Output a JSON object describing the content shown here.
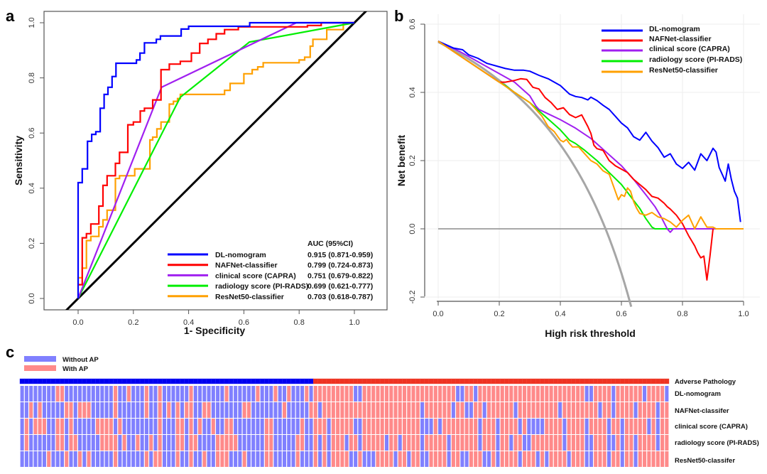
{
  "panels": {
    "a": "a",
    "b": "b",
    "c": "c"
  },
  "colors": {
    "dl": "#0000ff",
    "naf": "#ff0000",
    "capra": "#a020f0",
    "pirads": "#00ee00",
    "resnet": "#ffa000",
    "diag": "#000000",
    "treat_all": "#a6a6a6",
    "treat_none": "#8c8c8c",
    "hm_without": "#8080ff",
    "hm_with": "#ff8a8a",
    "hm_bar_without": "#0000ee",
    "hm_bar_with": "#ee3322"
  },
  "chart_data": [
    {
      "id": "roc",
      "type": "line",
      "title": "",
      "xlabel": "1- Specificity",
      "ylabel": "Sensitivity",
      "xlim": [
        -0.13,
        1.1
      ],
      "ylim": [
        -0.04,
        1.04
      ],
      "xticks": [
        "0.0",
        "0.2",
        "0.4",
        "0.6",
        "0.8",
        "1.0"
      ],
      "yticks": [
        "0.0",
        "0.2",
        "0.4",
        "0.6",
        "0.8",
        "1.0"
      ],
      "legend_position": "bottom-right",
      "legend_header": "AUC (95%CI)",
      "reference_line": {
        "name": "chance",
        "x": [
          -0.05,
          1.08
        ],
        "y": [
          -0.05,
          1.08
        ]
      },
      "series": [
        {
          "key": "dl",
          "name": "DL-nomogram",
          "auc": "0.915 (0.871-0.959)",
          "x": [
            0,
            0,
            0.015,
            0.015,
            0.034,
            0.034,
            0.049,
            0.049,
            0.064,
            0.064,
            0.08,
            0.08,
            0.094,
            0.094,
            0.108,
            0.108,
            0.123,
            0.123,
            0.137,
            0.137,
            0.211,
            0.211,
            0.224,
            0.224,
            0.24,
            0.24,
            0.283,
            0.283,
            0.298,
            0.298,
            0.373,
            0.373,
            0.4,
            0.4,
            0.621,
            0.621,
            1.0
          ],
          "y": [
            0,
            0.42,
            0.42,
            0.47,
            0.47,
            0.57,
            0.57,
            0.595,
            0.595,
            0.605,
            0.605,
            0.69,
            0.69,
            0.74,
            0.74,
            0.766,
            0.766,
            0.805,
            0.805,
            0.853,
            0.853,
            0.865,
            0.865,
            0.89,
            0.89,
            0.927,
            0.927,
            0.94,
            0.94,
            0.952,
            0.952,
            0.977,
            0.977,
            0.987,
            0.987,
            1.0,
            1.0
          ]
        },
        {
          "key": "naf",
          "name": "NAFNet-classifier",
          "auc": "0.799 (0.724-0.873)",
          "x": [
            0,
            0.015,
            0.015,
            0.03,
            0.03,
            0.046,
            0.046,
            0.075,
            0.075,
            0.09,
            0.09,
            0.105,
            0.105,
            0.135,
            0.135,
            0.15,
            0.15,
            0.18,
            0.18,
            0.2,
            0.2,
            0.225,
            0.225,
            0.24,
            0.24,
            0.27,
            0.27,
            0.3,
            0.3,
            0.33,
            0.33,
            0.37,
            0.37,
            0.41,
            0.41,
            0.44,
            0.44,
            0.47,
            0.47,
            0.5,
            0.5,
            0.53,
            0.53,
            0.58,
            0.58,
            0.83,
            0.83,
            0.88,
            0.88,
            0.95,
            0.95,
            1.0
          ],
          "y": [
            0.05,
            0.05,
            0.22,
            0.22,
            0.235,
            0.235,
            0.27,
            0.27,
            0.335,
            0.335,
            0.41,
            0.41,
            0.445,
            0.445,
            0.49,
            0.49,
            0.53,
            0.53,
            0.63,
            0.63,
            0.64,
            0.64,
            0.68,
            0.68,
            0.69,
            0.69,
            0.72,
            0.72,
            0.83,
            0.83,
            0.85,
            0.85,
            0.86,
            0.86,
            0.89,
            0.89,
            0.925,
            0.925,
            0.94,
            0.94,
            0.96,
            0.96,
            0.975,
            0.975,
            0.985,
            0.985,
            0.99,
            0.99,
            1.0,
            1.0,
            1.0,
            1.0
          ]
        },
        {
          "key": "capra",
          "name": "clinical score (CAPRA)",
          "auc": "0.751 (0.679-0.822)",
          "x": [
            0,
            0.302,
            0.79,
            1.0
          ],
          "y": [
            0,
            0.766,
            1.0,
            1.0
          ]
        },
        {
          "key": "pirads",
          "name": "radiology score (PI-RADS)",
          "auc": "0.699 (0.621-0.777)",
          "x": [
            0,
            0.37,
            0.62,
            1.0
          ],
          "y": [
            0,
            0.73,
            0.93,
            1.0
          ]
        },
        {
          "key": "resnet",
          "name": "ResNet50-classifier",
          "auc": "0.703 (0.618-0.787)",
          "x": [
            0,
            0,
            0.015,
            0.015,
            0.03,
            0.03,
            0.046,
            0.046,
            0.075,
            0.075,
            0.09,
            0.09,
            0.105,
            0.105,
            0.135,
            0.135,
            0.15,
            0.15,
            0.205,
            0.205,
            0.26,
            0.26,
            0.27,
            0.27,
            0.285,
            0.285,
            0.3,
            0.3,
            0.33,
            0.33,
            0.345,
            0.345,
            0.36,
            0.36,
            0.37,
            0.37,
            0.53,
            0.53,
            0.55,
            0.55,
            0.6,
            0.6,
            0.63,
            0.63,
            0.65,
            0.65,
            0.67,
            0.67,
            0.8,
            0.8,
            0.82,
            0.82,
            0.84,
            0.84,
            0.85,
            0.85,
            0.9,
            0.9,
            0.96,
            0.96,
            1.0
          ],
          "y": [
            0,
            0.075,
            0.075,
            0.11,
            0.11,
            0.21,
            0.21,
            0.225,
            0.225,
            0.26,
            0.26,
            0.285,
            0.285,
            0.32,
            0.32,
            0.435,
            0.435,
            0.445,
            0.445,
            0.47,
            0.47,
            0.575,
            0.575,
            0.585,
            0.585,
            0.615,
            0.615,
            0.64,
            0.64,
            0.705,
            0.705,
            0.715,
            0.715,
            0.725,
            0.725,
            0.74,
            0.74,
            0.755,
            0.755,
            0.78,
            0.78,
            0.815,
            0.815,
            0.83,
            0.83,
            0.84,
            0.84,
            0.855,
            0.855,
            0.865,
            0.865,
            0.875,
            0.875,
            0.915,
            0.915,
            0.94,
            0.94,
            0.975,
            0.975,
            1.0,
            1.0
          ]
        }
      ]
    },
    {
      "id": "dca",
      "type": "line",
      "title": "",
      "xlabel": "High risk threshold",
      "ylabel": "Net benefit",
      "xlim": [
        0,
        1.0
      ],
      "ylim": [
        -0.2,
        0.6
      ],
      "xticks": [
        "0.0",
        "0.2",
        "0.4",
        "0.6",
        "0.8",
        "1.0"
      ],
      "yticks": [
        "-0.2",
        "0.0",
        "0.2",
        "0.4",
        "0.6"
      ],
      "grid": true,
      "legend_position": "top-right",
      "treat_all": {
        "prevalence": 0.548
      },
      "treat_none": {
        "value": 0
      },
      "series": [
        {
          "key": "dl",
          "name": "DL-nomogram",
          "x": [
            0,
            0.05,
            0.08,
            0.1,
            0.13,
            0.16,
            0.2,
            0.22,
            0.25,
            0.28,
            0.3,
            0.33,
            0.36,
            0.4,
            0.43,
            0.45,
            0.47,
            0.49,
            0.5,
            0.52,
            0.54,
            0.56,
            0.58,
            0.6,
            0.62,
            0.64,
            0.66,
            0.68,
            0.7,
            0.72,
            0.74,
            0.76,
            0.78,
            0.8,
            0.82,
            0.84,
            0.86,
            0.88,
            0.9,
            0.91,
            0.92,
            0.94,
            0.95,
            0.96,
            0.97,
            0.98,
            0.99
          ],
          "y": [
            0.55,
            0.53,
            0.525,
            0.51,
            0.5,
            0.485,
            0.475,
            0.47,
            0.465,
            0.465,
            0.462,
            0.45,
            0.44,
            0.42,
            0.395,
            0.388,
            0.385,
            0.378,
            0.386,
            0.376,
            0.362,
            0.35,
            0.33,
            0.31,
            0.296,
            0.27,
            0.26,
            0.283,
            0.257,
            0.238,
            0.21,
            0.22,
            0.19,
            0.177,
            0.195,
            0.172,
            0.22,
            0.2,
            0.236,
            0.225,
            0.18,
            0.14,
            0.19,
            0.145,
            0.11,
            0.09,
            0.02
          ]
        },
        {
          "key": "naf",
          "name": "NAFNet-classifier",
          "x": [
            0,
            0.1,
            0.2,
            0.22,
            0.25,
            0.27,
            0.29,
            0.31,
            0.33,
            0.35,
            0.37,
            0.39,
            0.41,
            0.43,
            0.45,
            0.47,
            0.49,
            0.5,
            0.51,
            0.52,
            0.54,
            0.56,
            0.58,
            0.6,
            0.62,
            0.64,
            0.66,
            0.68,
            0.7,
            0.72,
            0.74,
            0.75,
            0.76,
            0.78,
            0.8,
            0.82,
            0.84,
            0.85,
            0.86,
            0.87,
            0.88,
            0.89,
            0.9
          ],
          "y": [
            0.55,
            0.49,
            0.43,
            0.43,
            0.435,
            0.44,
            0.438,
            0.415,
            0.41,
            0.385,
            0.37,
            0.35,
            0.355,
            0.335,
            0.326,
            0.334,
            0.3,
            0.28,
            0.245,
            0.235,
            0.23,
            0.2,
            0.185,
            0.175,
            0.165,
            0.145,
            0.13,
            0.115,
            0.095,
            0.09,
            0.075,
            0.065,
            0.058,
            0.04,
            0.015,
            -0.02,
            -0.05,
            -0.07,
            -0.085,
            -0.08,
            -0.15,
            -0.08,
            0.0
          ]
        },
        {
          "key": "capra",
          "name": "clinical score (CAPRA)",
          "x": [
            0,
            0.07,
            0.15,
            0.2,
            0.25,
            0.3,
            0.32,
            0.33,
            0.36,
            0.4,
            0.45,
            0.5,
            0.55,
            0.6,
            0.64,
            0.68,
            0.71,
            0.73,
            0.75,
            0.76,
            0.77,
            1.0
          ],
          "y": [
            0.55,
            0.52,
            0.48,
            0.455,
            0.43,
            0.39,
            0.36,
            0.35,
            0.337,
            0.32,
            0.295,
            0.265,
            0.225,
            0.185,
            0.145,
            0.1,
            0.065,
            0.035,
            0.0,
            -0.01,
            0.0,
            0.0
          ]
        },
        {
          "key": "pirads",
          "name": "radiology score (PI-RADS)",
          "x": [
            0,
            0.1,
            0.2,
            0.22,
            0.25,
            0.3,
            0.35,
            0.4,
            0.43,
            0.45,
            0.48,
            0.52,
            0.56,
            0.6,
            0.63,
            0.66,
            0.68,
            0.7,
            0.71,
            1.0
          ],
          "y": [
            0.55,
            0.49,
            0.43,
            0.42,
            0.4,
            0.37,
            0.33,
            0.29,
            0.26,
            0.25,
            0.23,
            0.2,
            0.165,
            0.13,
            0.095,
            0.06,
            0.03,
            0.005,
            0.0,
            0.0
          ]
        },
        {
          "key": "resnet",
          "name": "ResNet50-classifier",
          "x": [
            0,
            0.1,
            0.2,
            0.25,
            0.3,
            0.32,
            0.34,
            0.36,
            0.38,
            0.4,
            0.41,
            0.42,
            0.43,
            0.44,
            0.46,
            0.48,
            0.5,
            0.52,
            0.54,
            0.56,
            0.58,
            0.59,
            0.6,
            0.61,
            0.62,
            0.63,
            0.64,
            0.65,
            0.66,
            0.68,
            0.7,
            0.72,
            0.74,
            0.76,
            0.78,
            0.8,
            0.82,
            0.84,
            0.86,
            0.88,
            0.9,
            0.91,
            1.0
          ],
          "y": [
            0.55,
            0.49,
            0.43,
            0.4,
            0.37,
            0.35,
            0.33,
            0.3,
            0.285,
            0.26,
            0.255,
            0.262,
            0.25,
            0.24,
            0.24,
            0.22,
            0.2,
            0.19,
            0.17,
            0.16,
            0.11,
            0.085,
            0.1,
            0.095,
            0.12,
            0.11,
            0.08,
            0.06,
            0.045,
            0.04,
            0.048,
            0.035,
            0.03,
            0.02,
            0.005,
            0.025,
            0.04,
            0.0,
            0.035,
            0.005,
            0.005,
            0.0,
            0.0
          ]
        }
      ]
    },
    {
      "id": "heatmap",
      "type": "heatmap",
      "legend": [
        {
          "key": "without",
          "label": "Without AP"
        },
        {
          "key": "with",
          "label": "With AP"
        }
      ],
      "n_without_ap": 66,
      "n_with_ap": 80,
      "rows": [
        {
          "label": "Adverse Pathology"
        },
        {
          "label": "DL-nomogram",
          "without_ap_red": [
            8,
            9,
            21,
            24,
            28,
            31,
            38,
            46,
            53,
            57,
            60,
            64
          ],
          "with_ap_blue": [
            9,
            10,
            32,
            33,
            36,
            61,
            62,
            67,
            74,
            79
          ]
        },
        {
          "label": "NAFNet-classifer",
          "without_ap_red": [
            2,
            4,
            10,
            11,
            13,
            14,
            15,
            21,
            28,
            31,
            33,
            35,
            37,
            38,
            41,
            42,
            50,
            51,
            59,
            65
          ],
          "with_ap_blue": [
            1,
            24,
            31,
            34,
            35,
            38,
            45,
            55,
            64,
            67,
            72,
            77
          ]
        },
        {
          "label": "clinical score (CAPRA)",
          "without_ap_red": [
            1,
            3,
            4,
            5,
            8,
            9,
            11,
            17,
            18,
            19,
            20,
            22,
            31,
            35,
            36,
            38,
            40,
            43,
            46,
            47,
            55,
            56,
            63
          ],
          "with_ap_blue": [
            3,
            9,
            10,
            24,
            25,
            26,
            28,
            37,
            41,
            46,
            48,
            49,
            50,
            51,
            56,
            61,
            66,
            69,
            75,
            77
          ]
        },
        {
          "label": "radiology score (PI-RADS)",
          "without_ap_red": [
            1,
            8,
            9,
            11,
            12,
            18,
            19,
            20,
            21,
            23,
            26,
            29,
            31,
            35,
            36,
            38,
            39,
            44,
            45,
            46,
            47,
            48,
            55,
            56,
            62,
            63
          ],
          "with_ap_blue": [
            1,
            3,
            7,
            10,
            16,
            19,
            24,
            30,
            37,
            41,
            44,
            47,
            48,
            56,
            61,
            62,
            66,
            67,
            69,
            72,
            77
          ]
        },
        {
          "label": "ResNet50-classifer",
          "without_ap_red": [
            6,
            10,
            13,
            15,
            21,
            28,
            30,
            31,
            35,
            38,
            41,
            44,
            45,
            46,
            50,
            55,
            56,
            62
          ],
          "with_ap_blue": [
            1,
            3,
            8,
            9,
            11,
            12,
            13,
            18,
            21,
            24,
            25,
            30,
            33,
            34,
            38,
            39,
            41,
            46,
            50,
            52,
            57,
            61,
            62,
            66,
            69,
            72
          ]
        }
      ]
    }
  ]
}
